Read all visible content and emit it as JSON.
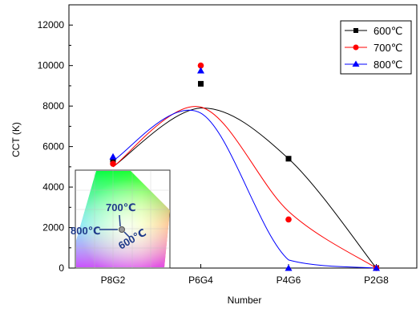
{
  "chart_data": {
    "type": "scatter",
    "xlabel": "Number",
    "ylabel": "CCT (K)",
    "categories": [
      "P8G2",
      "P6G4",
      "P4G6",
      "P2G8"
    ],
    "ylim": [
      0,
      13000
    ],
    "yticks": [
      0,
      2000,
      4000,
      6000,
      8000,
      10000,
      12000
    ],
    "grid": false,
    "legend_position": "top-right",
    "series": [
      {
        "name": "600℃",
        "color": "#000000",
        "marker": "square",
        "values": [
          5300,
          9100,
          5400,
          0
        ],
        "fit": [
          5000,
          7900,
          5400,
          0
        ]
      },
      {
        "name": "700℃",
        "color": "#ff0000",
        "marker": "circle",
        "values": [
          5150,
          10000,
          2400,
          0
        ],
        "fit": [
          5000,
          7950,
          2800,
          0
        ]
      },
      {
        "name": "800℃",
        "color": "#0000ff",
        "marker": "triangle",
        "values": [
          5500,
          9750,
          0,
          0
        ],
        "fit": [
          5300,
          7650,
          400,
          0
        ]
      }
    ],
    "inset": {
      "labels": {
        "t700": "700℃",
        "t800": "800℃",
        "t600": "600℃"
      }
    }
  }
}
